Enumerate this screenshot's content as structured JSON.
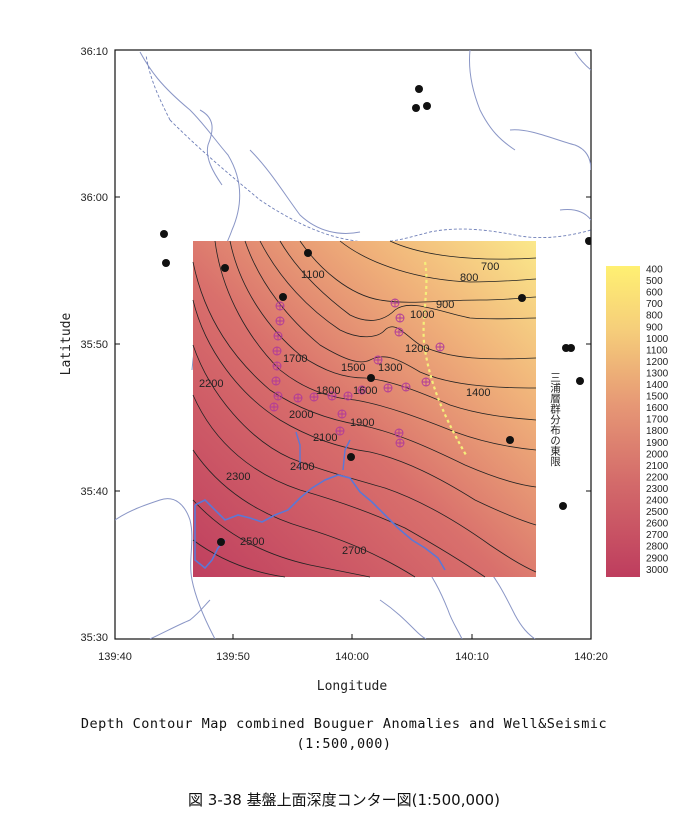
{
  "x_axis": {
    "label": "Longitude",
    "ticks": [
      "139:40",
      "139:50",
      "140:00",
      "140:10",
      "140:20"
    ]
  },
  "y_axis": {
    "label": "Latitude",
    "ticks": [
      "36:10",
      "36:00",
      "35:50",
      "35:40",
      "35:30"
    ]
  },
  "colorbar": {
    "levels": [
      "400",
      "500",
      "600",
      "700",
      "800",
      "900",
      "1000",
      "1100",
      "1200",
      "1300",
      "1400",
      "1500",
      "1600",
      "1700",
      "1800",
      "1900",
      "2000",
      "2100",
      "2200",
      "2300",
      "2400",
      "2500",
      "2600",
      "2700",
      "2800",
      "2900",
      "3000"
    ],
    "color_low": "#fff072",
    "color_high": "#be3d5e"
  },
  "contour_labels": [
    "700",
    "800",
    "900",
    "1000",
    "1100",
    "1200",
    "1300",
    "1400",
    "1500",
    "1600",
    "1700",
    "1800",
    "1900",
    "2000",
    "2100",
    "2200",
    "2300",
    "2400",
    "2500",
    "2700"
  ],
  "annotation_vertical": "三浦層群分布の東限",
  "caption": {
    "english_line1": "Depth Contour Map combined Bouguer Anomalies and Well&Seismic",
    "english_line2": "(1:500,000)",
    "japanese": "図 3-38 基盤上面深度コンター図(1:500,000)"
  },
  "colors": {
    "coastline": "#8a96c6",
    "prefecture_border": "#6f7fb8",
    "contour": "#222222",
    "well_marker": "#111111",
    "seismic_marker": "#b03a9a",
    "miura_limit_line": "#f5ee7a",
    "reclaimed_outline": "#5b78d6"
  }
}
